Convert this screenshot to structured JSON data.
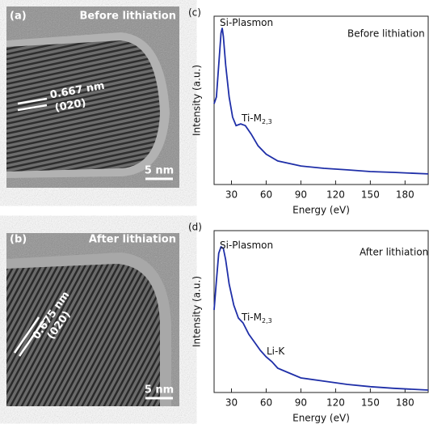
{
  "images": [
    {
      "panel_label": "(a)",
      "title": "Before lithiation",
      "spacing": "0.667 nm",
      "plane": "(020)",
      "scale": "5 nm"
    },
    {
      "panel_label": "(b)",
      "title": "After lithiation",
      "spacing": "0.675 nm",
      "plane": "(020)",
      "scale": "5 nm"
    }
  ],
  "chart_data": [
    {
      "type": "line",
      "panel_label": "(c)",
      "title": "Before lithiation",
      "xlabel": "Energy (eV)",
      "ylabel": "Intensity (a.u.)",
      "annotations": [
        {
          "text": "Si-Plasmon"
        },
        {
          "text": "Ti-M",
          "subscript": "2,3"
        }
      ],
      "x": [
        15,
        17,
        19,
        21,
        22,
        23,
        25,
        28,
        31,
        34,
        38,
        42,
        47,
        53,
        60,
        70,
        80,
        90,
        110,
        130,
        150,
        170,
        200
      ],
      "values": [
        48,
        52,
        71,
        90,
        93,
        88,
        71,
        52,
        40,
        35,
        36,
        35,
        30,
        23,
        18,
        14,
        12.5,
        11,
        9.6,
        8.7,
        7.7,
        7.2,
        6.3
      ],
      "color": "#1f2fa8",
      "xlim": [
        15,
        200
      ],
      "ylim": [
        0,
        100
      ],
      "xticks": [
        30,
        60,
        90,
        120,
        150,
        180
      ]
    },
    {
      "type": "line",
      "panel_label": "(d)",
      "title": "After lithiation",
      "xlabel": "Energy (eV)",
      "ylabel": "Intensity (a.u.)",
      "annotations": [
        {
          "text": "Si-Plasmon"
        },
        {
          "text": "Ti-M",
          "subscript": "2,3"
        },
        {
          "text": "Li-K"
        }
      ],
      "x": [
        15,
        17,
        19,
        21,
        23,
        25,
        28,
        32,
        36,
        40,
        45,
        50,
        55,
        60,
        65,
        70,
        80,
        90,
        110,
        130,
        150,
        170,
        200
      ],
      "values": [
        51,
        69,
        86,
        90,
        89,
        82,
        67,
        54,
        46,
        43,
        36,
        31,
        26,
        22,
        19,
        15,
        12,
        9,
        7,
        5,
        3.6,
        2.6,
        1.5
      ],
      "color": "#1f2fa8",
      "xlim": [
        15,
        200
      ],
      "ylim": [
        0,
        100
      ],
      "xticks": [
        30,
        60,
        90,
        120,
        150,
        180
      ]
    }
  ]
}
